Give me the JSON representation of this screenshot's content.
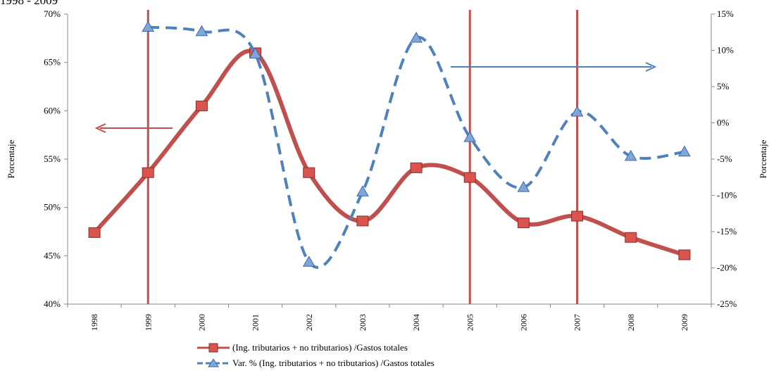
{
  "title_fragment": "1998 - 2009",
  "chart_data": {
    "type": "line",
    "categories": [
      "1998",
      "1999",
      "2000",
      "2001",
      "2002",
      "2003",
      "2004",
      "2005",
      "2006",
      "2007",
      "2008",
      "2009"
    ],
    "ylabel": "Porcentaje",
    "y2label": "Porcentaje",
    "ylim": [
      40,
      70
    ],
    "y2lim": [
      -25,
      15
    ],
    "yticks": [
      "40%",
      "45%",
      "50%",
      "55%",
      "60%",
      "65%",
      "70%"
    ],
    "y2ticks": [
      "-25%",
      "-20%",
      "-15%",
      "-10%",
      "-5%",
      "0%",
      "5%",
      "10%",
      "15%"
    ],
    "grid": false,
    "legend_position": "bottom",
    "series": [
      {
        "name": "(Ing. tributarios + no tributarios) /Gastos totales",
        "axis": "left",
        "color": "#c0504d",
        "marker": "square",
        "style": "solid",
        "values": [
          47.4,
          53.6,
          60.5,
          66.0,
          53.6,
          48.6,
          54.1,
          53.1,
          48.4,
          49.1,
          46.9,
          45.1
        ]
      },
      {
        "name": "Var. % (Ing. tributarios + no tributarios) /Gastos totales",
        "axis": "right",
        "color": "#4f81bd",
        "marker": "triangle",
        "style": "dashed",
        "values": [
          null,
          13.2,
          12.6,
          9.5,
          -19.2,
          -9.5,
          11.7,
          -2.0,
          -8.9,
          1.5,
          -4.6,
          -4.0
        ]
      }
    ],
    "vertical_markers": [
      "1999",
      "2005",
      "2007"
    ],
    "arrows": [
      {
        "points_to": "left axis"
      },
      {
        "points_to": "right axis"
      }
    ]
  }
}
